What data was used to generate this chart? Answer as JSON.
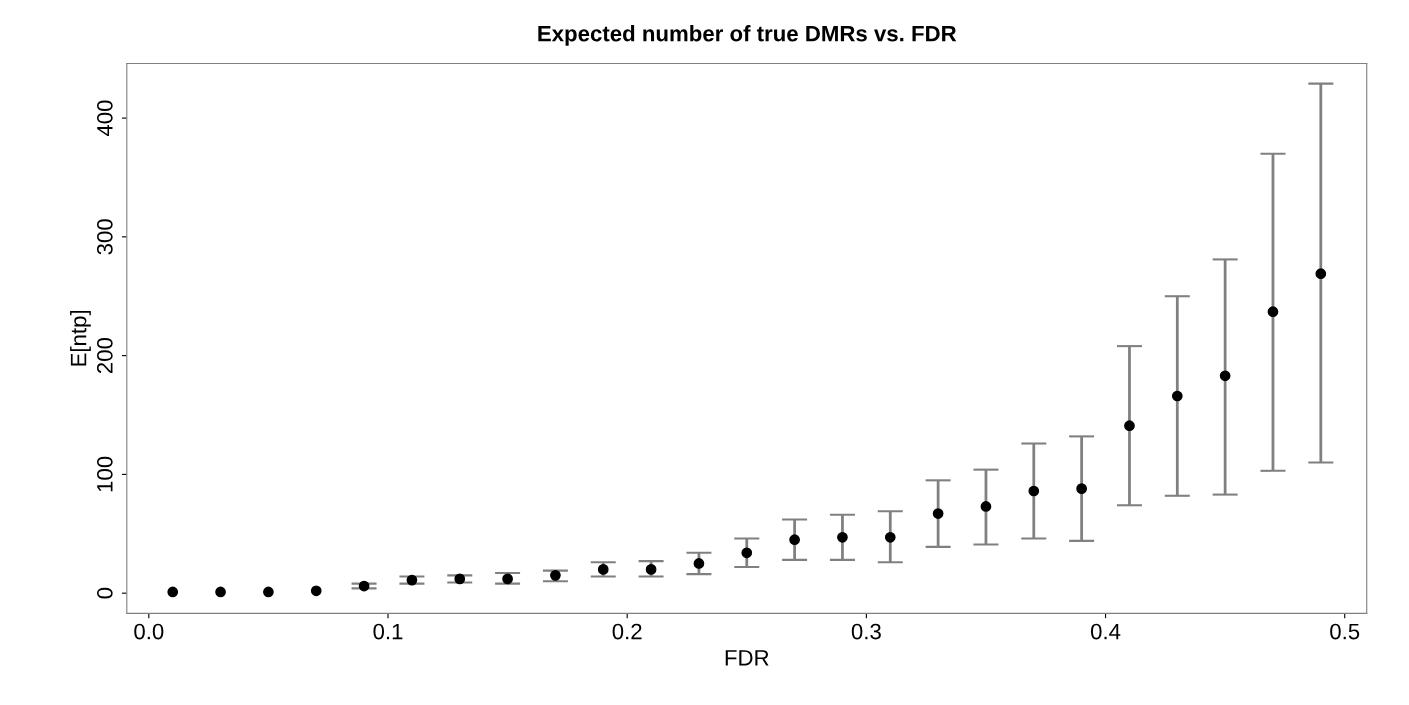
{
  "chart_data": {
    "type": "scatter",
    "title": "Expected number of true DMRs vs. FDR",
    "xlabel": "FDR",
    "ylabel": "E[ntp]",
    "x": [
      0.01,
      0.03,
      0.05,
      0.07,
      0.09,
      0.11,
      0.13,
      0.15,
      0.17,
      0.19,
      0.21,
      0.23,
      0.25,
      0.27,
      0.29,
      0.31,
      0.33,
      0.35,
      0.37,
      0.39,
      0.41,
      0.43,
      0.45,
      0.47,
      0.49
    ],
    "series": [
      {
        "color": "#000000",
        "values": [
          1,
          1,
          1,
          2,
          6,
          11,
          12,
          12,
          15,
          20,
          20,
          25,
          34,
          45,
          47,
          47,
          67,
          73,
          86,
          88,
          141,
          166,
          183,
          237,
          269
        ],
        "errors": [
          null,
          null,
          null,
          null,
          [
            4,
            8
          ],
          [
            8,
            14
          ],
          [
            9,
            15
          ],
          [
            8,
            17
          ],
          [
            10,
            19
          ],
          [
            14,
            26
          ],
          [
            14,
            27
          ],
          [
            16,
            34
          ],
          [
            22,
            46
          ],
          [
            28,
            62
          ],
          [
            28,
            66
          ],
          [
            26,
            69
          ],
          [
            39,
            95
          ],
          [
            41,
            104
          ],
          [
            46,
            126
          ],
          [
            44,
            132
          ],
          [
            74,
            208
          ],
          [
            82,
            250
          ],
          [
            83,
            281
          ],
          [
            103,
            370
          ],
          [
            110,
            429
          ]
        ]
      }
    ],
    "xlim": [
      -0.0092,
      0.5092
    ],
    "xticks": [
      {
        "value": 0,
        "label": "0.0"
      },
      0.1,
      0.2,
      0.3,
      0.4,
      0.5
    ],
    "ylim": [
      -17,
      446
    ],
    "yticks": [
      0,
      100,
      200,
      300,
      400
    ],
    "marker": "circle",
    "grid": false,
    "legend": false
  }
}
